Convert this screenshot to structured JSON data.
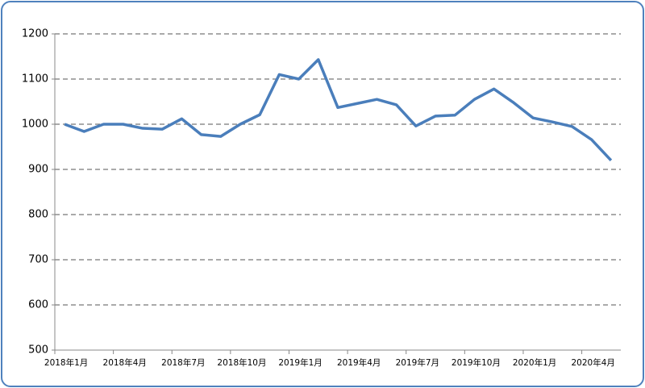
{
  "chart_data": {
    "type": "line",
    "categories": [
      "2018年1月",
      null,
      null,
      "2018年4月",
      null,
      null,
      "2018年7月",
      null,
      null,
      "2018年10月",
      null,
      null,
      "2019年1月",
      null,
      null,
      "2019年4月",
      null,
      null,
      "2019年7月",
      null,
      null,
      "2019年10月",
      null,
      null,
      "2020年1月",
      null,
      null,
      "2020年4月",
      null
    ],
    "series": [
      {
        "color": "#4a7ebb",
        "values": [
          1000,
          984,
          1000,
          1000,
          991,
          989,
          1012,
          977,
          973,
          1000,
          1021,
          1110,
          1100,
          1143,
          1037,
          1046,
          1055,
          1043,
          996,
          1018,
          1020,
          1055,
          1078,
          1048,
          1014,
          1005,
          995,
          966,
          920
        ]
      }
    ],
    "ylim": [
      500,
      1200
    ],
    "yticks": [
      500,
      600,
      700,
      800,
      900,
      1000,
      1100,
      1200
    ],
    "grid": true
  }
}
